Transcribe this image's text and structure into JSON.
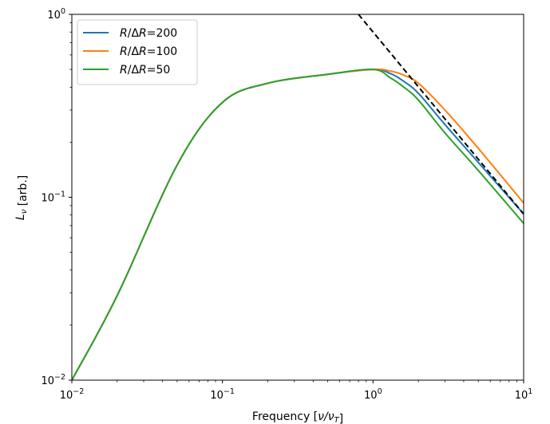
{
  "chart_data": {
    "type": "line",
    "title": "",
    "xlabel": "Frequency [ν/ν_T]",
    "ylabel": "L_ν [arb.]",
    "xscale": "log",
    "yscale": "log",
    "xlim": [
      0.01,
      10
    ],
    "ylim": [
      0.01,
      1
    ],
    "grid": false,
    "legend_position": "top-left",
    "x_ticks": [
      {
        "value": 0.01,
        "base": "10",
        "exp": "−2"
      },
      {
        "value": 0.1,
        "base": "10",
        "exp": "−1"
      },
      {
        "value": 1,
        "base": "10",
        "exp": "0"
      },
      {
        "value": 10,
        "base": "10",
        "exp": "1"
      }
    ],
    "y_ticks": [
      {
        "value": 0.01,
        "base": "10",
        "exp": "−2"
      },
      {
        "value": 0.1,
        "base": "10",
        "exp": "−1"
      },
      {
        "value": 1,
        "base": "10",
        "exp": "0"
      }
    ],
    "series": [
      {
        "name": "R/ΔR=200",
        "legend": {
          "italic1": "R",
          "sep": "/Δ",
          "italic2": "R",
          "rest": "=200"
        },
        "color": "#1f77b4",
        "x": [
          0.01,
          0.02,
          0.05,
          0.1,
          0.2,
          0.5,
          1.0,
          1.3,
          1.6,
          2.0,
          3.0,
          5.0,
          10.0
        ],
        "y": [
          0.01,
          0.029,
          0.15,
          0.33,
          0.42,
          0.47,
          0.5,
          0.475,
          0.43,
          0.37,
          0.25,
          0.155,
          0.081
        ]
      },
      {
        "name": "R/ΔR=100",
        "legend": {
          "italic1": "R",
          "sep": "/Δ",
          "italic2": "R",
          "rest": "=100"
        },
        "color": "#ff7f0e",
        "x": [
          0.01,
          0.02,
          0.05,
          0.1,
          0.2,
          0.5,
          1.0,
          1.3,
          1.6,
          2.0,
          3.0,
          5.0,
          10.0
        ],
        "y": [
          0.01,
          0.029,
          0.15,
          0.33,
          0.42,
          0.47,
          0.5,
          0.49,
          0.465,
          0.42,
          0.3,
          0.185,
          0.093
        ]
      },
      {
        "name": "R/ΔR=50",
        "legend": {
          "italic1": "R",
          "sep": "/Δ",
          "italic2": "R",
          "rest": "=50"
        },
        "color": "#2ca02c",
        "x": [
          0.01,
          0.02,
          0.05,
          0.1,
          0.2,
          0.5,
          1.0,
          1.3,
          1.6,
          2.0,
          3.0,
          5.0,
          10.0
        ],
        "y": [
          0.01,
          0.029,
          0.15,
          0.33,
          0.42,
          0.47,
          0.5,
          0.45,
          0.4,
          0.34,
          0.225,
          0.14,
          0.072
        ]
      }
    ],
    "reference_line": {
      "style": "dashed",
      "color": "#000000",
      "x": [
        0.8,
        10
      ],
      "y": [
        1.0,
        0.081
      ]
    }
  }
}
